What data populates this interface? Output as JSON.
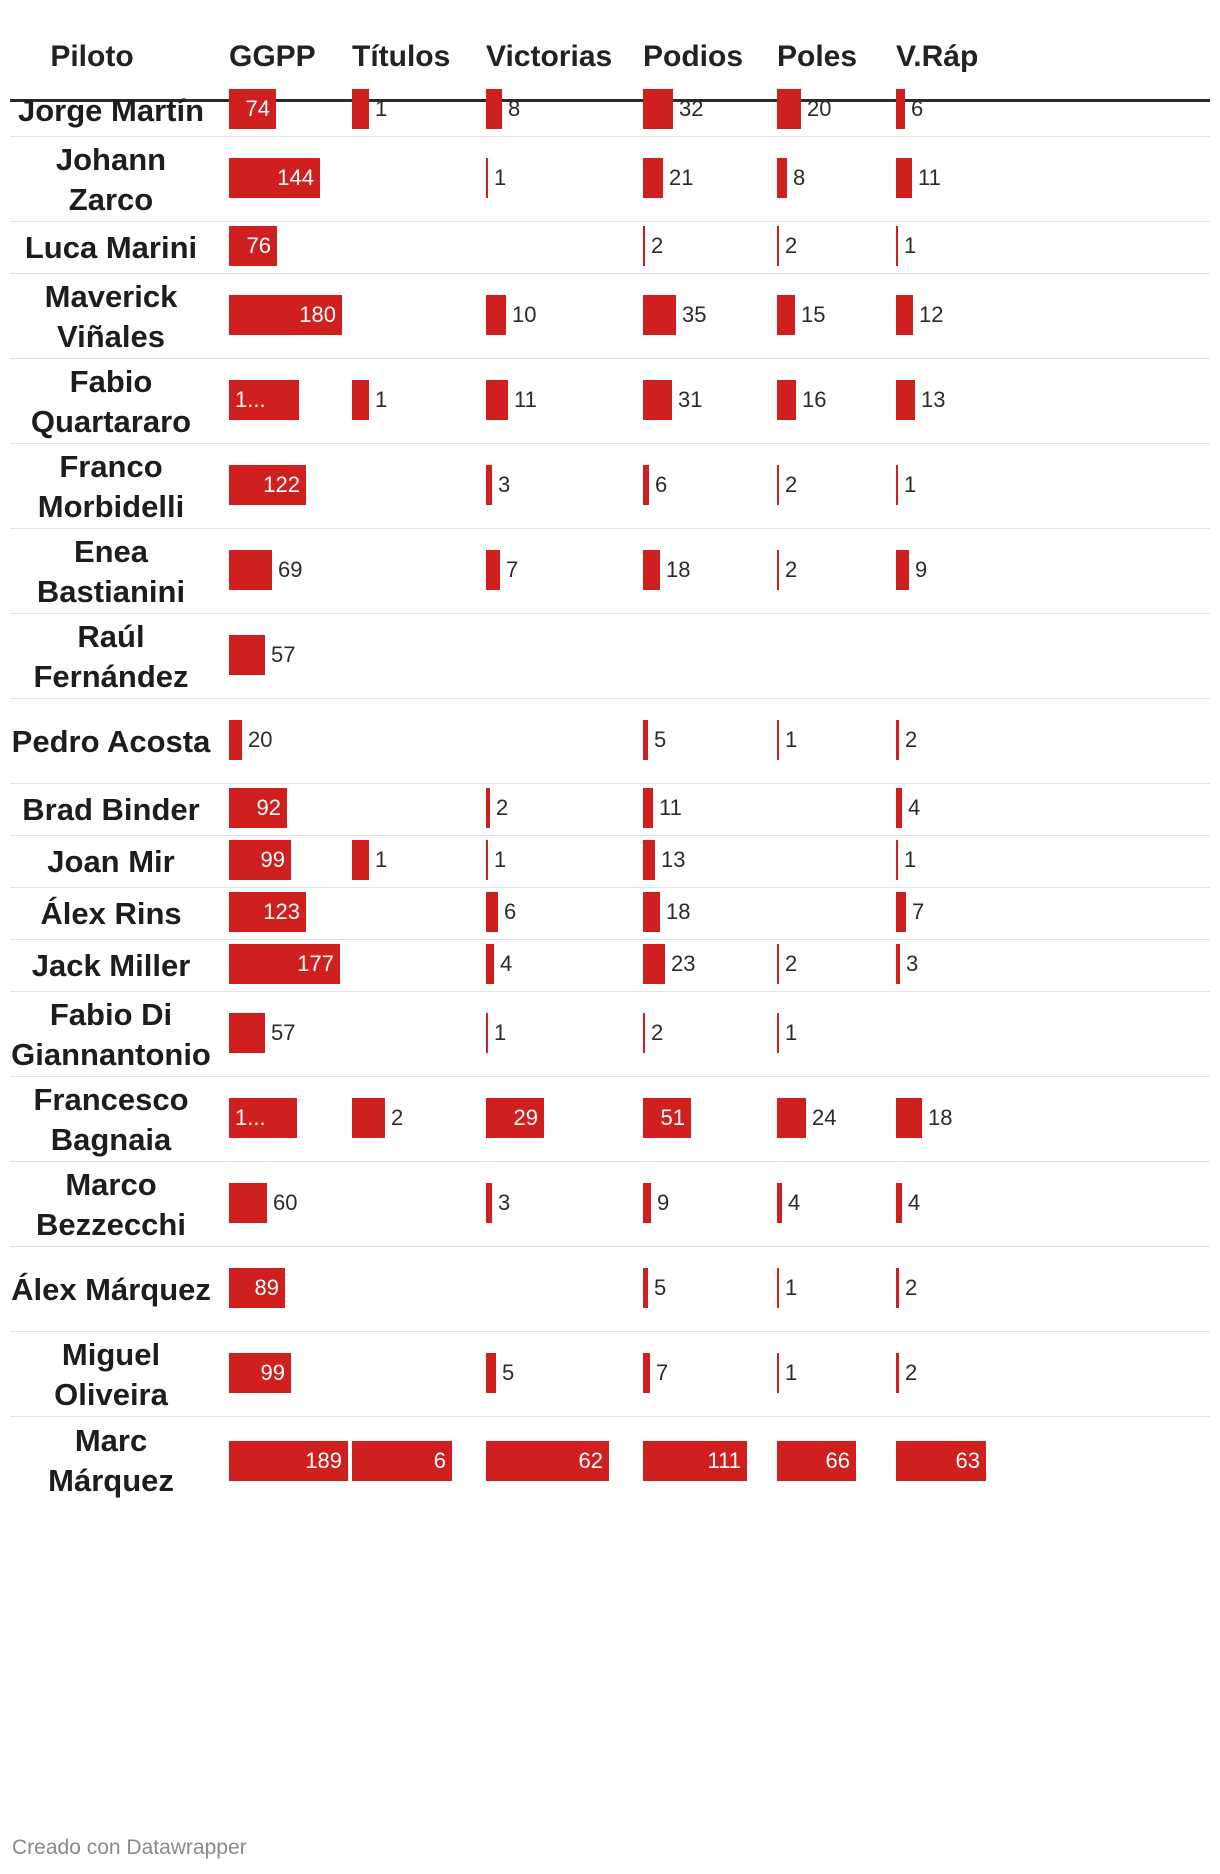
{
  "columns": [
    "Piloto",
    "GGPP",
    "Títulos",
    "Victorias",
    "Podios",
    "Poles",
    "V.Ráp"
  ],
  "accent_color": "#cf1f1f",
  "footer": {
    "credit": "Creado con Datawrapper"
  },
  "chart_data": {
    "type": "table",
    "columns": [
      "Piloto",
      "GGPP",
      "Títulos",
      "Victorias",
      "Podios",
      "Poles",
      "V.Ráp"
    ],
    "rows": [
      {
        "piloto": "Jorge Martín",
        "values": [
          74,
          1,
          8,
          32,
          20,
          6
        ]
      },
      {
        "piloto": "Johann Zarco",
        "values": [
          144,
          null,
          1,
          21,
          8,
          11
        ]
      },
      {
        "piloto": "Luca Marini",
        "values": [
          76,
          null,
          null,
          2,
          2,
          1
        ]
      },
      {
        "piloto": "Maverick Viñales",
        "values": [
          180,
          null,
          10,
          35,
          15,
          12
        ]
      },
      {
        "piloto": "Fabio Quartararo",
        "values": [
          111,
          1,
          11,
          31,
          16,
          13
        ]
      },
      {
        "piloto": "Franco Morbidelli",
        "values": [
          122,
          null,
          3,
          6,
          2,
          1
        ]
      },
      {
        "piloto": "Enea Bastianini",
        "values": [
          69,
          null,
          7,
          18,
          2,
          9
        ]
      },
      {
        "piloto": "Raúl Fernández",
        "values": [
          57,
          null,
          null,
          null,
          null,
          null
        ]
      },
      {
        "piloto": "Pedro Acosta",
        "values": [
          20,
          null,
          null,
          5,
          1,
          2
        ]
      },
      {
        "piloto": "Brad Binder",
        "values": [
          92,
          null,
          2,
          11,
          null,
          4
        ]
      },
      {
        "piloto": "Joan Mir",
        "values": [
          99,
          1,
          1,
          13,
          null,
          1
        ]
      },
      {
        "piloto": "Álex Rins",
        "values": [
          123,
          null,
          6,
          18,
          null,
          7
        ]
      },
      {
        "piloto": "Jack Miller",
        "values": [
          177,
          null,
          4,
          23,
          2,
          3
        ]
      },
      {
        "piloto": "Fabio Di Giannantonio",
        "values": [
          57,
          null,
          1,
          2,
          1,
          null
        ]
      },
      {
        "piloto": "Francesco Bagnaia",
        "values": [
          108,
          2,
          29,
          51,
          24,
          18
        ]
      },
      {
        "piloto": "Marco Bezzecchi",
        "values": [
          60,
          null,
          3,
          9,
          4,
          4
        ]
      },
      {
        "piloto": "Álex Márquez",
        "values": [
          89,
          null,
          null,
          5,
          1,
          2
        ]
      },
      {
        "piloto": "Miguel Oliveira",
        "values": [
          99,
          null,
          5,
          7,
          1,
          2
        ]
      },
      {
        "piloto": "Marc Márquez",
        "values": [
          189,
          6,
          62,
          111,
          66,
          63
        ]
      }
    ],
    "display_labels": {
      "Fabio Quartararo": {
        "GGPP": "1..."
      },
      "Francesco Bagnaia": {
        "GGPP": "1..."
      }
    }
  }
}
